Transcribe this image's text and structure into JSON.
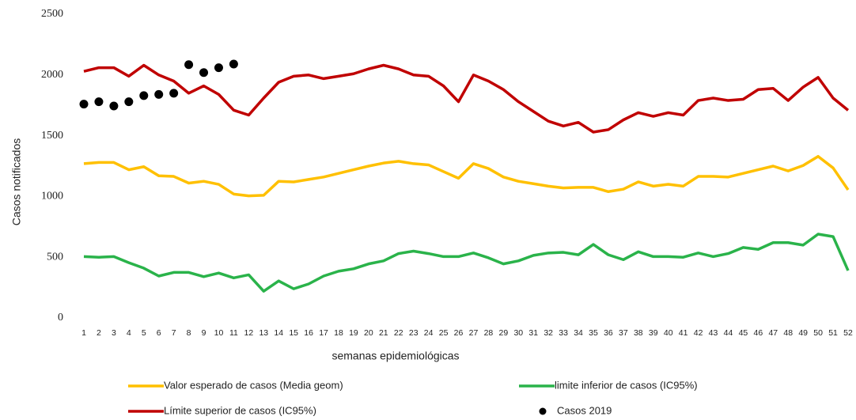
{
  "chart_data": {
    "type": "line",
    "x_label": "semanas epidemiológicas",
    "y_label": "Casos notificados",
    "categories": [
      "1",
      "2",
      "3",
      "4",
      "5",
      "6",
      "7",
      "8",
      "9",
      "10",
      "11",
      "12",
      "13",
      "14",
      "15",
      "16",
      "17",
      "18",
      "19",
      "20",
      "21",
      "22",
      "23",
      "24",
      "25",
      "26",
      "27",
      "28",
      "29",
      "30",
      "31",
      "32",
      "33",
      "34",
      "35",
      "36",
      "37",
      "38",
      "39",
      "40",
      "41",
      "42",
      "43",
      "44",
      "45",
      "46",
      "47",
      "48",
      "49",
      "50",
      "51",
      "52"
    ],
    "ylim": [
      0,
      2500
    ],
    "yticks": [
      0,
      500,
      1000,
      1500,
      2000,
      2500
    ],
    "grid": false,
    "legend_position": "bottom",
    "series": [
      {
        "name": "Valor esperado de casos (Media geom)",
        "color": "#ffc000",
        "mark": "line",
        "values": [
          1270,
          1280,
          1280,
          1220,
          1245,
          1170,
          1165,
          1110,
          1125,
          1100,
          1020,
          1005,
          1010,
          1125,
          1120,
          1140,
          1160,
          1190,
          1220,
          1250,
          1275,
          1290,
          1270,
          1260,
          1205,
          1150,
          1270,
          1230,
          1160,
          1125,
          1105,
          1085,
          1070,
          1075,
          1075,
          1040,
          1060,
          1120,
          1085,
          1100,
          1085,
          1165,
          1165,
          1160,
          1190,
          1220,
          1250,
          1210,
          1255,
          1330,
          1235,
          1055
        ]
      },
      {
        "name": "limite inferior de casos (IC95%)",
        "color": "#2ab34a",
        "mark": "line",
        "values": [
          505,
          500,
          505,
          455,
          410,
          345,
          375,
          375,
          340,
          370,
          330,
          355,
          220,
          305,
          240,
          280,
          345,
          385,
          405,
          445,
          470,
          530,
          550,
          530,
          505,
          505,
          535,
          495,
          445,
          470,
          515,
          535,
          540,
          520,
          605,
          520,
          480,
          545,
          505,
          505,
          500,
          535,
          505,
          530,
          580,
          565,
          620,
          620,
          600,
          690,
          670,
          390
        ]
      },
      {
        "name": "Límite superior de casos (IC95%)",
        "color": "#c00000",
        "mark": "line",
        "values": [
          2030,
          2060,
          2060,
          1990,
          2080,
          2000,
          1950,
          1850,
          1910,
          1840,
          1710,
          1670,
          1810,
          1940,
          1990,
          2000,
          1970,
          1990,
          2010,
          2050,
          2080,
          2050,
          2000,
          1990,
          1910,
          1780,
          2000,
          1950,
          1880,
          1780,
          1700,
          1620,
          1580,
          1610,
          1530,
          1550,
          1630,
          1690,
          1660,
          1690,
          1670,
          1790,
          1810,
          1790,
          1800,
          1880,
          1890,
          1790,
          1900,
          1980,
          1810,
          1710
        ]
      },
      {
        "name": "Casos 2019",
        "color": "#000000",
        "mark": "scatter",
        "values": [
          1760,
          1780,
          1745,
          1780,
          1830,
          1840,
          1850,
          2085,
          2020,
          2060,
          2090,
          null,
          null,
          null,
          null,
          null,
          null,
          null,
          null,
          null,
          null,
          null,
          null,
          null,
          null,
          null,
          null,
          null,
          null,
          null,
          null,
          null,
          null,
          null,
          null,
          null,
          null,
          null,
          null,
          null,
          null,
          null,
          null,
          null,
          null,
          null,
          null,
          null,
          null,
          null,
          null,
          null
        ]
      }
    ]
  }
}
